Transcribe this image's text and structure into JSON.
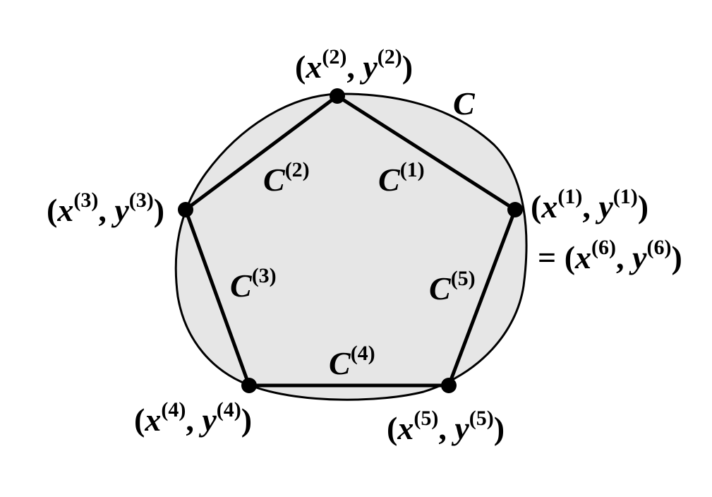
{
  "figure": {
    "closed_curve_label": "C",
    "arcs": [
      {
        "name": "C",
        "index": "(1)"
      },
      {
        "name": "C",
        "index": "(2)"
      },
      {
        "name": "C",
        "index": "(3)"
      },
      {
        "name": "C",
        "index": "(4)"
      },
      {
        "name": "C",
        "index": "(5)"
      }
    ],
    "vertices": [
      {
        "x": "x",
        "y": "y",
        "index": "(1)"
      },
      {
        "x": "x",
        "y": "y",
        "index": "(2)"
      },
      {
        "x": "x",
        "y": "y",
        "index": "(3)"
      },
      {
        "x": "x",
        "y": "y",
        "index": "(4)"
      },
      {
        "x": "x",
        "y": "y",
        "index": "(5)"
      }
    ],
    "extra_label": {
      "prefix": "= ",
      "x": "x",
      "y": "y",
      "index": "(6)"
    },
    "colors": {
      "fill": "#e6e6e6",
      "stroke": "#000000",
      "background": "#ffffff"
    }
  }
}
